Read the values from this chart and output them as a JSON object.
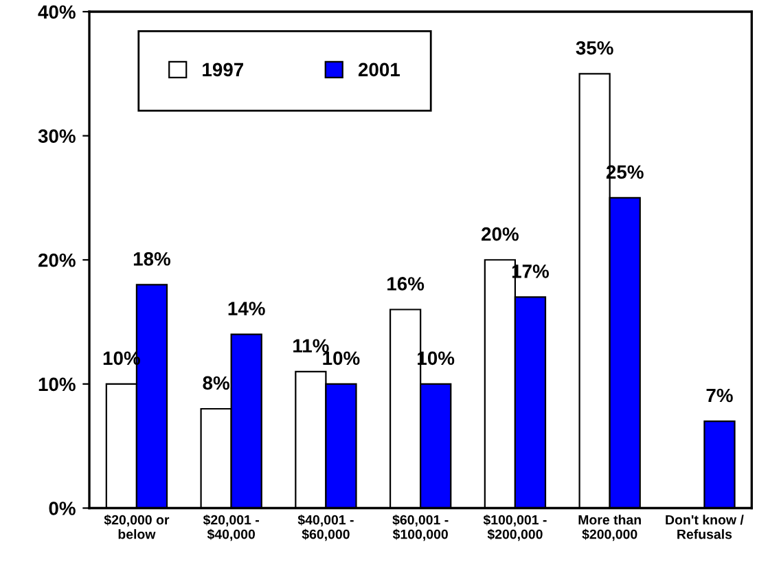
{
  "chart_data": {
    "type": "bar",
    "categories": [
      "$20,000 or\nbelow",
      "$20,001 -\n$40,000",
      "$40,001 -\n$60,000",
      "$60,001 -\n$100,000",
      "$100,001 -\n$200,000",
      "More than\n$200,000",
      "Don't know /\nRefusals"
    ],
    "series": [
      {
        "name": "1997",
        "color": "#ffffff",
        "values": [
          10,
          8,
          11,
          16,
          20,
          35,
          null
        ],
        "value_labels": [
          "10%",
          "8%",
          "11%",
          "16%",
          "20%",
          "35%",
          null
        ]
      },
      {
        "name": "2001",
        "color": "#0000ff",
        "values": [
          18,
          14,
          10,
          10,
          17,
          25,
          7
        ],
        "value_labels": [
          "18%",
          "14%",
          "10%",
          "10%",
          "17%",
          "25%",
          "7%"
        ]
      }
    ],
    "ylim": [
      0,
      40
    ],
    "yticks": [
      {
        "value": 0,
        "label": "0%"
      },
      {
        "value": 10,
        "label": "10%"
      },
      {
        "value": 20,
        "label": "20%"
      },
      {
        "value": 30,
        "label": "30%"
      },
      {
        "value": 40,
        "label": "40%"
      }
    ],
    "grid": false,
    "legend": "top left"
  }
}
